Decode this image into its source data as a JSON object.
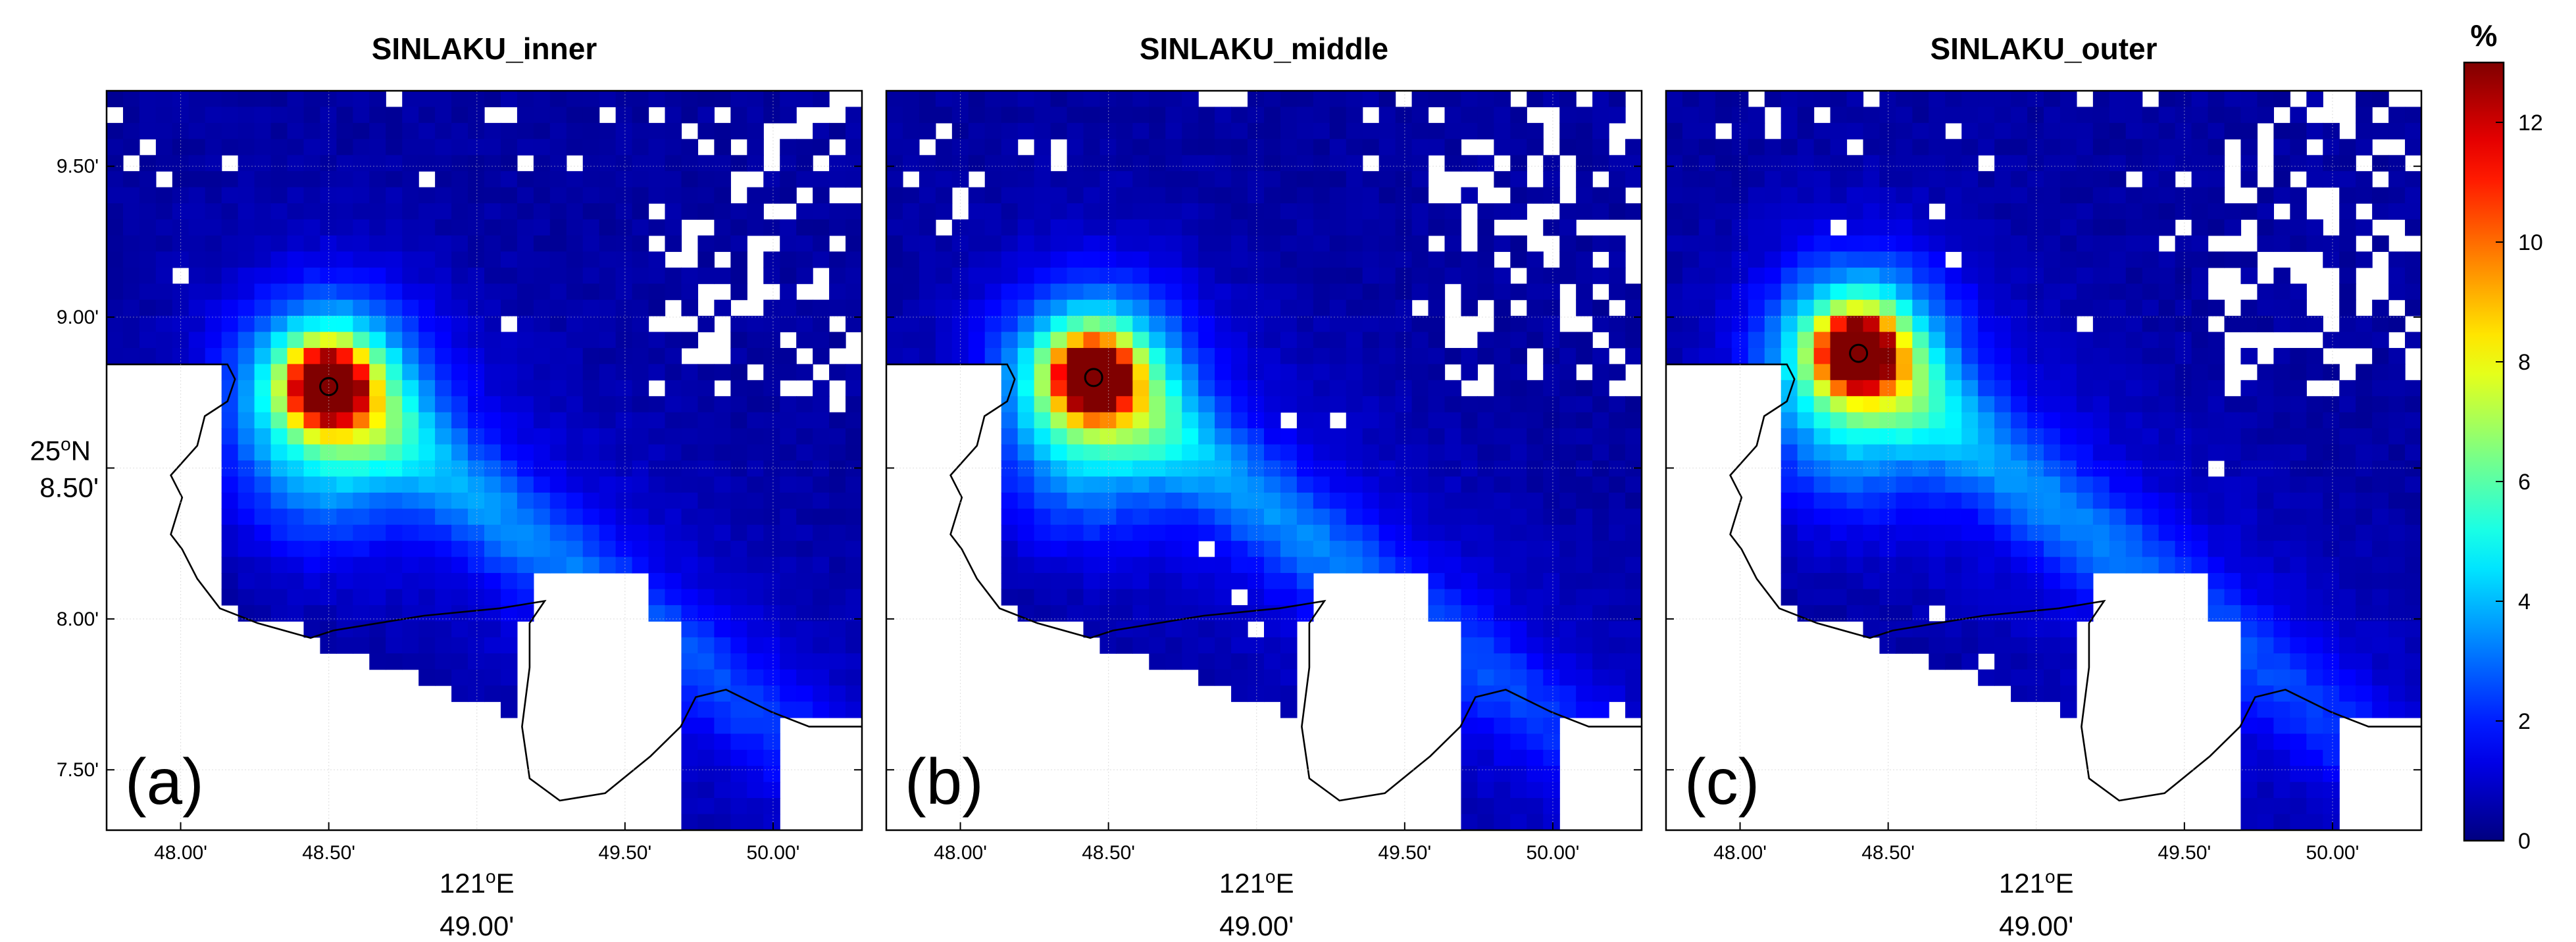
{
  "chart_data": [
    {
      "type": "heatmap",
      "title": "SINLAKU_inner",
      "panel_label": "(a)",
      "xlabel": "121°E",
      "ylabel": "25°N",
      "x_ticks": [
        "48.00'",
        "48.50'",
        "49.00'",
        "49.50'",
        "50.00'"
      ],
      "y_ticks": [
        "9.50'",
        "9.00'",
        "8.50'",
        "8.00'",
        "7.50'"
      ],
      "xlim": [
        47.75,
        50.3
      ],
      "ylim": [
        7.3,
        9.75
      ],
      "grid": true,
      "hotspot": {
        "x": 48.5,
        "y": 8.77,
        "value": 13
      },
      "plume_end": {
        "x": 50.2,
        "y": 7.5
      }
    },
    {
      "type": "heatmap",
      "title": "SINLAKU_middle",
      "panel_label": "(b)",
      "xlabel": "121°E",
      "ylabel": "",
      "x_ticks": [
        "48.00'",
        "48.50'",
        "49.00'",
        "49.50'",
        "50.00'"
      ],
      "xlim": [
        47.75,
        50.3
      ],
      "ylim": [
        7.3,
        9.75
      ],
      "grid": true,
      "hotspot": {
        "x": 48.45,
        "y": 8.8,
        "value": 13
      },
      "plume_end": {
        "x": 50.2,
        "y": 7.5
      }
    },
    {
      "type": "heatmap",
      "title": "SINLAKU_outer",
      "panel_label": "(c)",
      "xlabel": "121°E",
      "ylabel": "",
      "x_ticks": [
        "48.00'",
        "48.50'",
        "49.00'",
        "49.50'",
        "50.00'"
      ],
      "xlim": [
        47.75,
        50.3
      ],
      "ylim": [
        7.3,
        9.75
      ],
      "grid": true,
      "hotspot": {
        "x": 48.4,
        "y": 8.88,
        "value": 13
      },
      "plume_end": {
        "x": 50.2,
        "y": 7.5
      }
    }
  ],
  "colorbar": {
    "unit": "%",
    "min": 0,
    "max": 13,
    "ticks": [
      0,
      2,
      4,
      6,
      8,
      10,
      12
    ],
    "colors": [
      "#00008f",
      "#0000ff",
      "#00ffff",
      "#ffff00",
      "#ff0000",
      "#800000"
    ]
  },
  "axis_labels": {
    "x_center": "49.00'",
    "y_center": "8.50'"
  }
}
